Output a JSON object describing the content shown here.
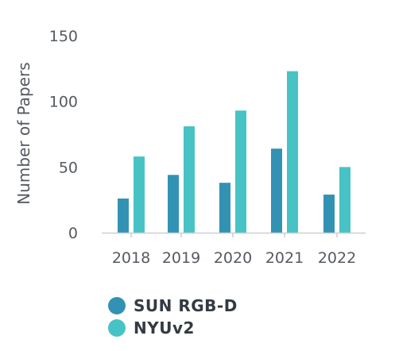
{
  "chart_data": {
    "type": "bar",
    "title": "",
    "xlabel": "",
    "ylabel": "Number of Papers",
    "categories": [
      "2018",
      "2019",
      "2020",
      "2021",
      "2022"
    ],
    "series": [
      {
        "name": "SUN RGB-D",
        "values": [
          26,
          44,
          38,
          64,
          29
        ],
        "color": "#3292b4"
      },
      {
        "name": "NYUv2",
        "values": [
          58,
          81,
          93,
          123,
          50
        ],
        "color": "#47c3c6"
      }
    ],
    "ylim": [
      0,
      150
    ],
    "yticks": [
      0,
      50,
      100,
      150
    ],
    "grid": false,
    "legend": "bottom-left"
  }
}
